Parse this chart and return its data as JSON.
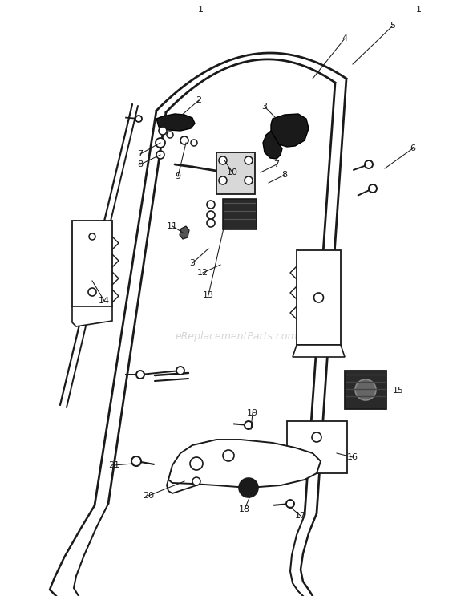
{
  "bg": "#ffffff",
  "lc": "#1a1a1a",
  "watermark": "eReplacementParts.com",
  "figsize": [
    5.9,
    7.43
  ],
  "dpi": 100
}
